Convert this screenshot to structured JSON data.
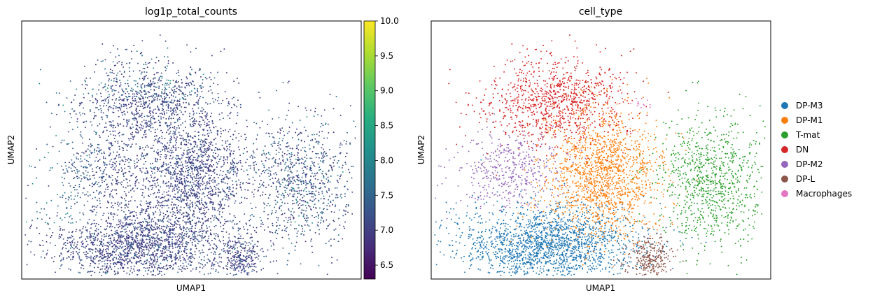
{
  "figure": {
    "panels": [
      {
        "title": "log1p_total_counts",
        "xlabel": "UMAP1",
        "ylabel": "UMAP2"
      },
      {
        "title": "cell_type",
        "xlabel": "UMAP1",
        "ylabel": "UMAP2"
      }
    ]
  },
  "chart_data": [
    {
      "type": "scatter",
      "title": "log1p_total_counts",
      "xlabel": "UMAP1",
      "ylabel": "UMAP2",
      "grid": false,
      "colormap": "viridis",
      "colorbar": {
        "vmin": 6.3,
        "vmax": 10.0,
        "ticks": [
          "6.5",
          "7.0",
          "7.5",
          "8.0",
          "8.5",
          "9.0",
          "9.5",
          "10.0"
        ],
        "tick_values": [
          6.5,
          7.0,
          7.5,
          8.0,
          8.5,
          9.0,
          9.5,
          10.0
        ]
      },
      "point_color_value_typical": 7.0
    },
    {
      "type": "scatter",
      "title": "cell_type",
      "xlabel": "UMAP1",
      "ylabel": "UMAP2",
      "grid": false,
      "legend_position": "right",
      "categories": [
        {
          "name": "DP-M3",
          "color": "#1f77b4"
        },
        {
          "name": "DP-M1",
          "color": "#ff7f0e"
        },
        {
          "name": "T-mat",
          "color": "#2ca02c"
        },
        {
          "name": "DN",
          "color": "#d62728"
        },
        {
          "name": "DP-M2",
          "color": "#9467bd"
        },
        {
          "name": "DP-L",
          "color": "#8c564b"
        },
        {
          "name": "Macrophages",
          "color": "#e377c2"
        }
      ]
    }
  ]
}
